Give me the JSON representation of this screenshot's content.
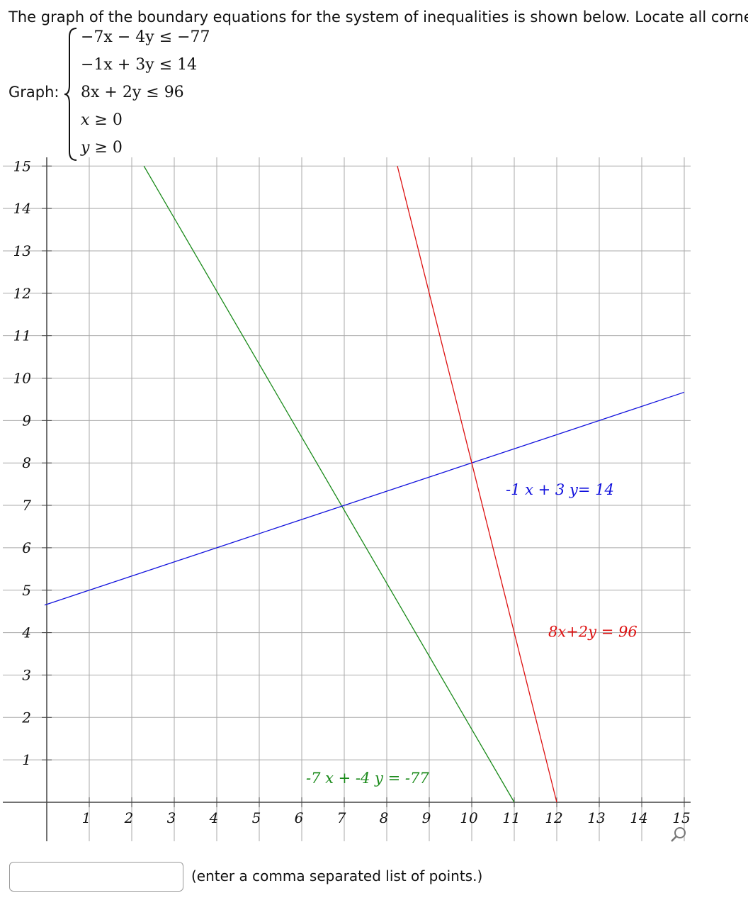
{
  "question": {
    "prompt": "The graph of the boundary equations for the system of inequalities is shown below. Locate all corner",
    "graph_label": "Graph:",
    "inequalities": [
      {
        "lhs": "−7x − 4y",
        "rel": "≤",
        "rhs": "−77"
      },
      {
        "lhs": "−1x + 3y",
        "rel": "≤",
        "rhs": "14"
      },
      {
        "lhs": "8x + 2y",
        "rel": "≤",
        "rhs": "96"
      },
      {
        "lhs": "x",
        "rel": "≥",
        "rhs": "0"
      },
      {
        "lhs": "y",
        "rel": "≥",
        "rhs": "0"
      }
    ]
  },
  "chart_data": {
    "type": "line",
    "xlim": [
      -1,
      15
    ],
    "ylim": [
      -1,
      15
    ],
    "grid": true,
    "x_ticks": [
      "1",
      "2",
      "3",
      "4",
      "5",
      "6",
      "7",
      "8",
      "9",
      "10",
      "11",
      "12",
      "13",
      "14",
      "15"
    ],
    "y_ticks": [
      "1",
      "2",
      "3",
      "4",
      "5",
      "6",
      "7",
      "8",
      "9",
      "10",
      "11",
      "12",
      "13",
      "14",
      "15"
    ],
    "series": [
      {
        "name": "-7 x + -4 y = -77",
        "color": "#1a8a1a",
        "x": [
          2.286,
          11
        ],
        "y": [
          15,
          0
        ],
        "label_at": [
          6.1,
          0.45
        ]
      },
      {
        "name": "-1 x + 3 y= 14",
        "color": "#1111dd",
        "x": [
          -0.05,
          15
        ],
        "y": [
          4.65,
          9.667
        ],
        "label_at": [
          10.8,
          7.25
        ]
      },
      {
        "name": "8x+2y = 96",
        "color": "#dd1111",
        "x": [
          8.25,
          12
        ],
        "y": [
          15,
          0
        ],
        "label_at": [
          11.8,
          3.9
        ]
      }
    ]
  },
  "answer": {
    "value": "",
    "hint": "(enter a comma separated list of points.)"
  },
  "icons": {
    "zoom": "magnifier-icon"
  }
}
